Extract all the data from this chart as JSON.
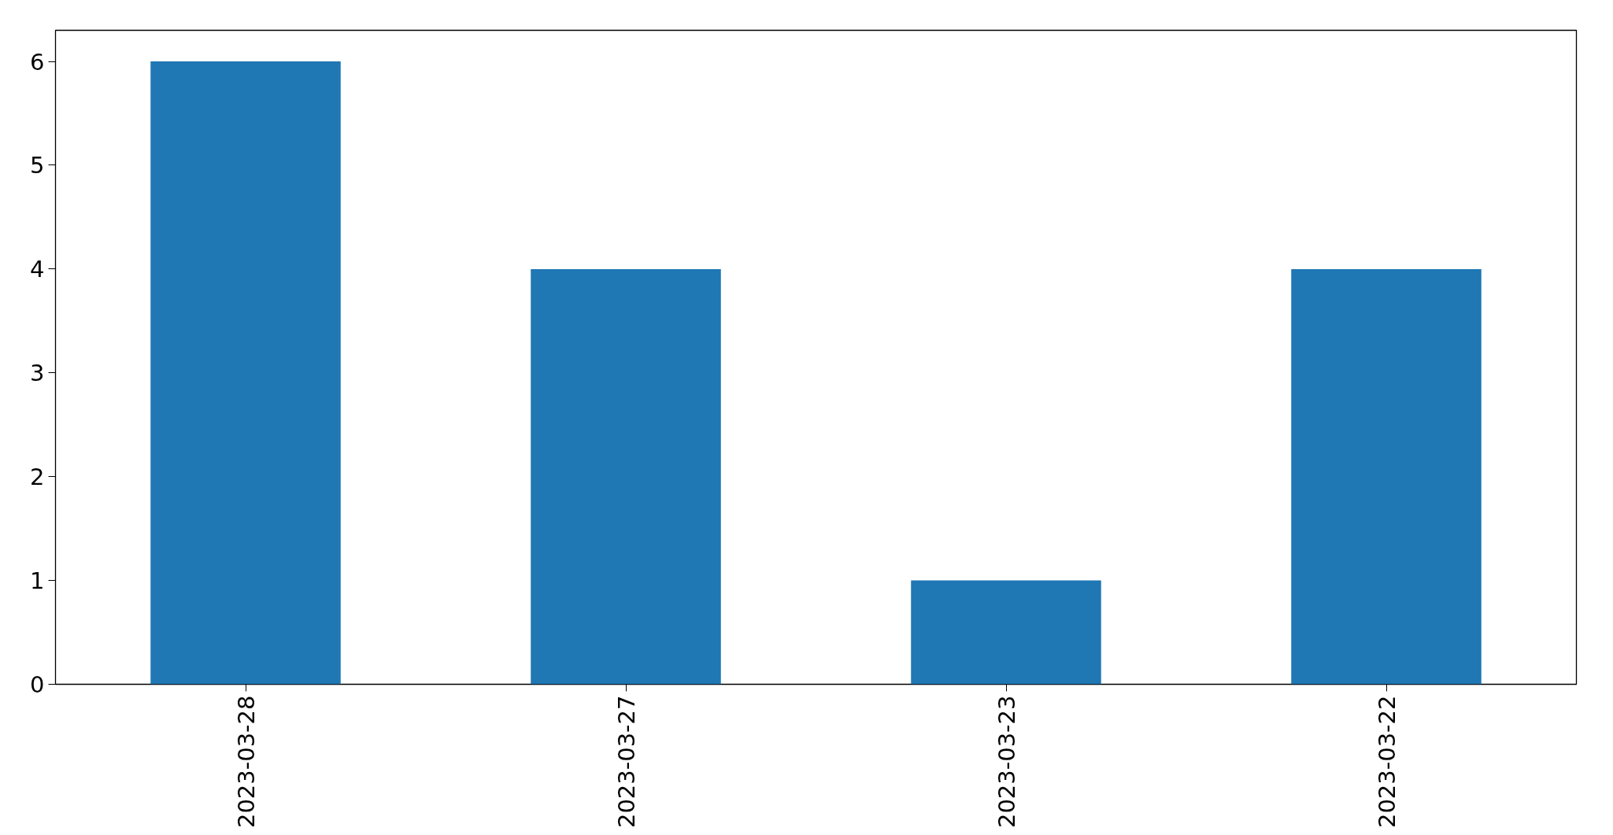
{
  "chart_data": {
    "type": "bar",
    "categories": [
      "2023-03-28",
      "2023-03-27",
      "2023-03-23",
      "2023-03-22"
    ],
    "values": [
      6,
      4,
      1,
      4
    ],
    "color": "#1f77b4",
    "ylim": [
      0,
      6.3
    ],
    "yticks": [
      0,
      1,
      2,
      3,
      4,
      5,
      6
    ],
    "grid": false
  }
}
